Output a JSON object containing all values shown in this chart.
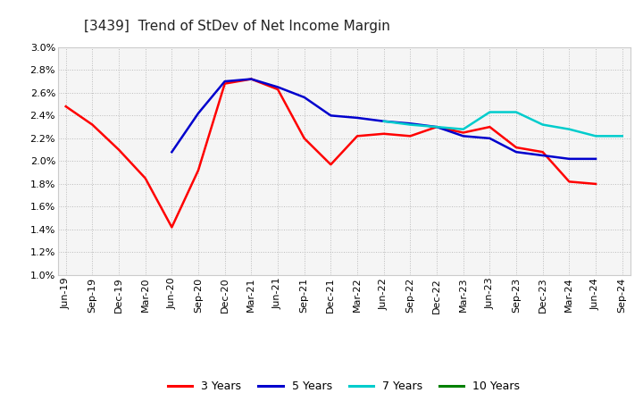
{
  "title": "[3439]  Trend of StDev of Net Income Margin",
  "ylim": [
    0.01,
    0.03
  ],
  "ytick_vals": [
    0.01,
    0.012,
    0.014,
    0.016,
    0.018,
    0.02,
    0.022,
    0.024,
    0.026,
    0.028,
    0.03
  ],
  "ytick_labels": [
    "1.0%",
    "1.2%",
    "1.4%",
    "1.6%",
    "1.8%",
    "2.0%",
    "2.2%",
    "2.4%",
    "2.6%",
    "2.8%",
    "3.0%"
  ],
  "x_labels": [
    "Jun-19",
    "Sep-19",
    "Dec-19",
    "Mar-20",
    "Jun-20",
    "Sep-20",
    "Dec-20",
    "Mar-21",
    "Jun-21",
    "Sep-21",
    "Dec-21",
    "Mar-22",
    "Jun-22",
    "Sep-22",
    "Dec-22",
    "Mar-23",
    "Jun-23",
    "Sep-23",
    "Dec-23",
    "Mar-24",
    "Jun-24",
    "Sep-24"
  ],
  "series": {
    "3 Years": {
      "color": "#FF0000",
      "data_x": [
        "Jun-19",
        "Sep-19",
        "Dec-19",
        "Mar-20",
        "Jun-20",
        "Sep-20",
        "Dec-20",
        "Mar-21",
        "Jun-21",
        "Sep-21",
        "Dec-21",
        "Mar-22",
        "Jun-22",
        "Sep-22",
        "Dec-22",
        "Mar-23",
        "Jun-23",
        "Sep-23",
        "Dec-23",
        "Mar-24",
        "Jun-24"
      ],
      "data_y": [
        0.0248,
        0.0232,
        0.021,
        0.0185,
        0.0142,
        0.0192,
        0.0268,
        0.0272,
        0.0263,
        0.022,
        0.0197,
        0.0222,
        0.0224,
        0.0222,
        0.023,
        0.0225,
        0.023,
        0.0212,
        0.0208,
        0.0182,
        0.018
      ]
    },
    "5 Years": {
      "color": "#0000CD",
      "data_x": [
        "Jun-20",
        "Sep-20",
        "Dec-20",
        "Mar-21",
        "Jun-21",
        "Sep-21",
        "Dec-21",
        "Mar-22",
        "Jun-22",
        "Sep-22",
        "Dec-22",
        "Mar-23",
        "Jun-23",
        "Sep-23",
        "Dec-23",
        "Mar-24",
        "Jun-24"
      ],
      "data_y": [
        0.0208,
        0.0242,
        0.027,
        0.0272,
        0.0265,
        0.0256,
        0.024,
        0.0238,
        0.0235,
        0.0233,
        0.023,
        0.0222,
        0.022,
        0.0208,
        0.0205,
        0.0202,
        0.0202
      ]
    },
    "7 Years": {
      "color": "#00CCCC",
      "data_x": [
        "Jun-22",
        "Sep-22",
        "Dec-22",
        "Mar-23",
        "Jun-23",
        "Sep-23",
        "Dec-23",
        "Mar-24",
        "Jun-24",
        "Sep-24"
      ],
      "data_y": [
        0.0235,
        0.0232,
        0.023,
        0.0228,
        0.0243,
        0.0243,
        0.0232,
        0.0228,
        0.0222,
        0.0222
      ]
    },
    "10 Years": {
      "color": "#008000",
      "data_x": [],
      "data_y": []
    }
  },
  "legend_entries": [
    "3 Years",
    "5 Years",
    "7 Years",
    "10 Years"
  ],
  "legend_colors": [
    "#FF0000",
    "#0000CD",
    "#00CCCC",
    "#008000"
  ],
  "background_color": "#FFFFFF",
  "plot_bg_color": "#F5F5F5",
  "grid_color": "#BBBBBB",
  "title_fontsize": 11,
  "tick_fontsize": 8,
  "legend_fontsize": 9,
  "linewidth": 1.8
}
